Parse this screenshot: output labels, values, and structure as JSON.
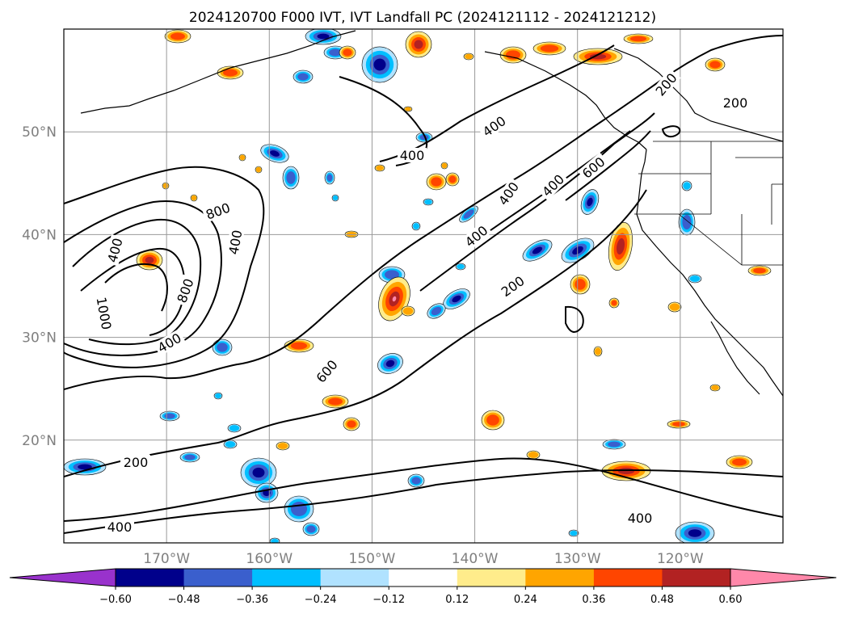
{
  "title": "2024120700 F000 IVT, IVT Landfall PC (2024121112 - 2024121212)",
  "lat_labels": [
    "50°N",
    "40°N",
    "30°N",
    "20°N"
  ],
  "lon_labels": [
    "170°W",
    "160°W",
    "150°W",
    "140°W",
    "130°W",
    "120°W"
  ],
  "map_extent": {
    "lon": [
      -180,
      -110
    ],
    "lat": [
      10,
      60
    ]
  },
  "grid": true,
  "contour_labels": [
    "200",
    "200",
    "400",
    "400",
    "400",
    "400",
    "400",
    "600",
    "800",
    "400",
    "400",
    "800",
    "1000",
    "400",
    "600",
    "200",
    "200",
    "200",
    "400",
    "400"
  ],
  "colorbar": {
    "ticks": [
      "−0.60",
      "−0.48",
      "−0.36",
      "−0.24",
      "−0.12",
      "0.12",
      "0.24",
      "0.36",
      "0.48",
      "0.60"
    ],
    "colors": [
      "#9932cc",
      "#00008b",
      "#3a5fcd",
      "#00bfff",
      "#b0e2ff",
      "#ffffff",
      "#ffec8b",
      "#ffa500",
      "#ff4500",
      "#b22222",
      "#ff88aa"
    ],
    "extend": "both"
  }
}
